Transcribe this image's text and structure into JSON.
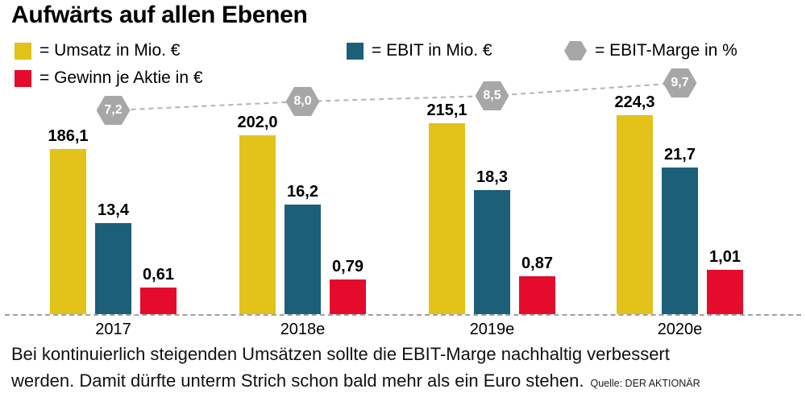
{
  "title": "Aufwärts auf allen Ebenen",
  "legend": [
    {
      "key": "umsatz",
      "label": "= Umsatz in Mio. €",
      "color": "#e3c219",
      "shape": "square"
    },
    {
      "key": "ebit",
      "label": "= EBIT in Mio. €",
      "color": "#1b5f79",
      "shape": "square"
    },
    {
      "key": "ebit-marge",
      "label": "= EBIT-Marge in %",
      "color": "#a7a7a7",
      "shape": "hexagon"
    },
    {
      "key": "gewinn-je-aktie",
      "label": "= Gewinn je Aktie in €",
      "color": "#e40b2c",
      "shape": "square"
    }
  ],
  "caption": {
    "line1": "Bei kontinuierlich steigenden Umsätzen sollte die EBIT-Marge nachhaltig verbessert",
    "line2": "werden. Damit dürfte unterm Strich schon bald mehr als ein Euro stehen."
  },
  "source": "Quelle: DER AKTIONÄR",
  "chart_data": {
    "type": "bar",
    "categories": [
      "2017",
      "2018e",
      "2019e",
      "2020e"
    ],
    "series": [
      {
        "key": "umsatz",
        "name": "Umsatz in Mio. €",
        "color": "#e3c219",
        "values": [
          186.1,
          202.0,
          215.1,
          224.3
        ],
        "labels": [
          "186,1",
          "202,0",
          "215,1",
          "224,3"
        ]
      },
      {
        "key": "ebit",
        "name": "EBIT in Mio. €",
        "color": "#1b5f79",
        "values": [
          13.4,
          16.2,
          18.3,
          21.7
        ],
        "labels": [
          "13,4",
          "16,2",
          "18,3",
          "21,7"
        ]
      },
      {
        "key": "gewinn-je-aktie",
        "name": "Gewinn je Aktie in €",
        "color": "#e40b2c",
        "values": [
          0.61,
          0.79,
          0.87,
          1.01
        ],
        "labels": [
          "0,61",
          "0,79",
          "0,87",
          "1,01"
        ]
      }
    ],
    "line_series": {
      "key": "ebit-marge",
      "name": "EBIT-Marge in %",
      "color": "#a7a7a7",
      "marker": "hexagon",
      "line_style": "dashed",
      "values": [
        7.2,
        8.0,
        8.5,
        9.7
      ],
      "labels": [
        "7,2",
        "8,0",
        "8,5",
        "9,7"
      ]
    },
    "legend_position": "top",
    "grid": false,
    "y_axis_visible": false,
    "x_axis": "dashed baseline, values labeled directly on bars"
  }
}
